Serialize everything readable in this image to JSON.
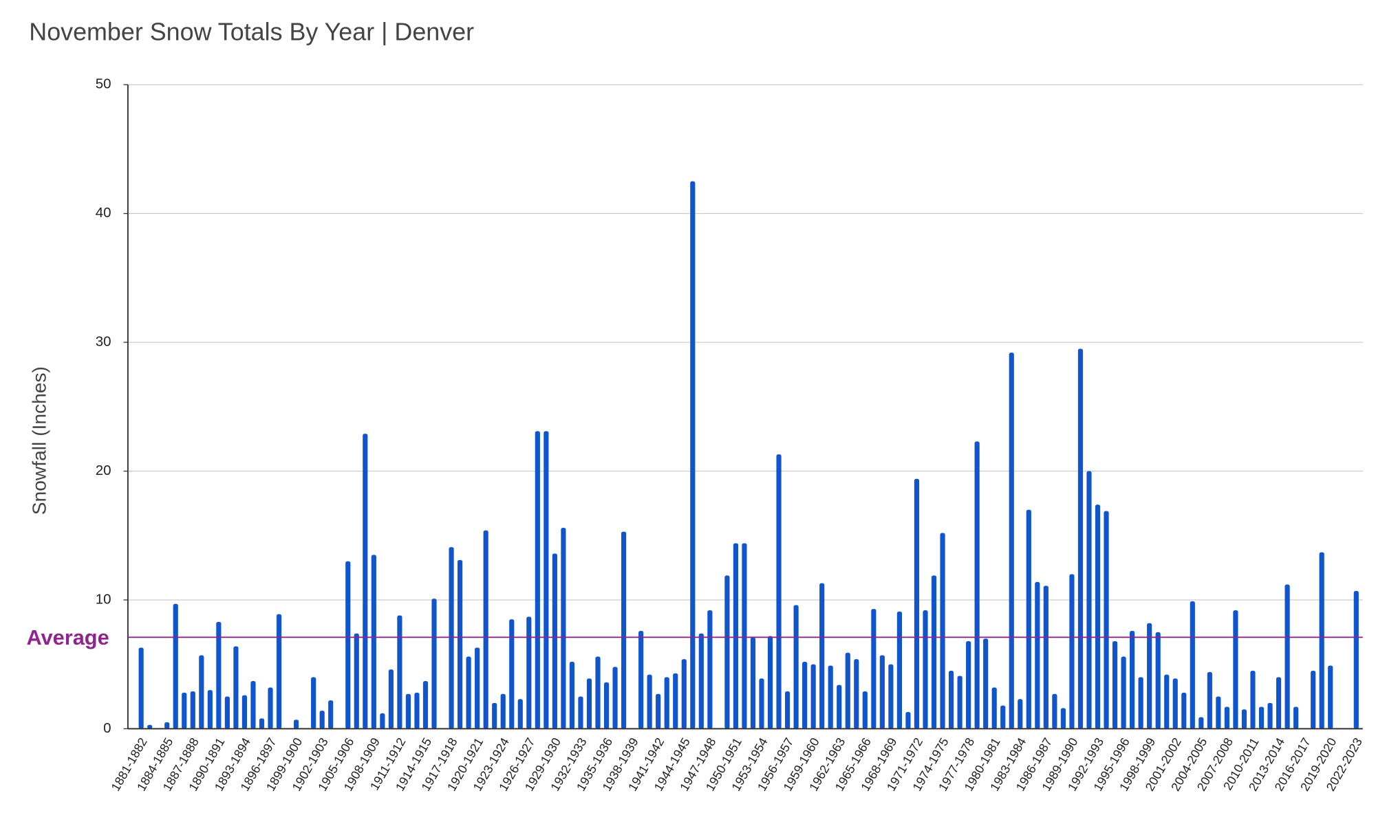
{
  "chart_data": {
    "type": "bar",
    "title": "November Snow Totals By Year | Denver",
    "y_label": "Snowfall (Inches)",
    "categories": [
      "1881-1882",
      null,
      null,
      "1884-1885",
      null,
      null,
      "1887-1888",
      null,
      null,
      "1890-1891",
      null,
      null,
      "1893-1894",
      null,
      null,
      "1896-1897",
      null,
      null,
      "1899-1900",
      null,
      null,
      "1902-1903",
      null,
      null,
      "1905-1906",
      null,
      null,
      "1908-1909",
      null,
      null,
      "1911-1912",
      null,
      null,
      "1914-1915",
      null,
      null,
      "1917-1918",
      null,
      null,
      "1920-1921",
      null,
      null,
      "1923-1924",
      null,
      null,
      "1926-1927",
      null,
      null,
      "1929-1930",
      null,
      null,
      "1932-1933",
      null,
      null,
      "1935-1936",
      null,
      null,
      "1938-1939",
      null,
      null,
      "1941-1942",
      null,
      null,
      "1944-1945",
      null,
      null,
      "1947-1948",
      null,
      null,
      "1950-1951",
      null,
      null,
      "1953-1954",
      null,
      null,
      "1956-1957",
      null,
      null,
      "1959-1960",
      null,
      null,
      "1962-1963",
      null,
      null,
      "1965-1966",
      null,
      null,
      "1968-1969",
      null,
      null,
      "1971-1972",
      null,
      null,
      "1974-1975",
      null,
      null,
      "1977-1978",
      null,
      null,
      "1980-1981",
      null,
      null,
      "1983-1984",
      null,
      null,
      "1986-1987",
      null,
      null,
      "1989-1990",
      null,
      null,
      "1992-1993",
      null,
      null,
      "1995-1996",
      null,
      null,
      "1998-1999",
      null,
      null,
      "2001-2002",
      null,
      null,
      "2004-2005",
      null,
      null,
      "2007-2008",
      null,
      null,
      "2010-2011",
      null,
      null,
      "2013-2014",
      null,
      null,
      "2016-2017",
      null,
      null,
      "2019-2020",
      null,
      null,
      "2022-2023"
    ],
    "values": [
      6.3,
      0.3,
      0,
      0.5,
      9.7,
      2.8,
      2.9,
      5.7,
      3.0,
      8.3,
      2.5,
      6.4,
      2.6,
      3.7,
      0.8,
      3.2,
      8.9,
      0,
      0.7,
      0,
      4.0,
      1.4,
      2.2,
      0,
      13.0,
      7.4,
      22.9,
      13.5,
      1.2,
      4.6,
      8.8,
      2.7,
      2.8,
      3.7,
      10.1,
      0,
      14.1,
      13.1,
      5.6,
      6.3,
      15.4,
      2.0,
      2.7,
      8.5,
      2.3,
      8.7,
      23.1,
      23.1,
      13.6,
      15.6,
      5.2,
      2.5,
      3.9,
      5.6,
      3.6,
      4.8,
      15.3,
      0,
      7.6,
      4.2,
      2.7,
      4.0,
      4.3,
      5.4,
      42.5,
      7.4,
      9.2,
      0,
      11.9,
      14.4,
      14.4,
      7.1,
      3.9,
      7.2,
      21.3,
      2.9,
      9.6,
      5.2,
      5.0,
      11.3,
      4.9,
      3.4,
      5.9,
      5.4,
      2.9,
      9.3,
      5.7,
      5.0,
      9.1,
      1.3,
      19.4,
      9.2,
      11.9,
      15.2,
      4.5,
      4.1,
      6.8,
      22.3,
      7.0,
      3.2,
      1.8,
      29.2,
      2.3,
      17.0,
      11.4,
      11.1,
      2.7,
      1.6,
      12.0,
      29.5,
      20.0,
      17.4,
      16.9,
      6.8,
      5.6,
      7.6,
      4.0,
      8.2,
      7.5,
      4.2,
      3.9,
      2.8,
      9.9,
      0.9,
      4.4,
      2.5,
      1.7,
      9.2,
      1.5,
      4.5,
      1.7,
      2.0,
      4.0,
      11.2,
      1.7,
      0,
      4.5,
      13.7,
      4.9,
      0,
      0,
      10.7
    ],
    "color": "#1155cc",
    "ylim": [
      0,
      50
    ],
    "yticks": [
      0,
      10,
      20,
      30,
      40,
      50
    ],
    "grid": true,
    "average": {
      "label": "Average",
      "value": 7.1,
      "color": "#8e248e"
    }
  }
}
